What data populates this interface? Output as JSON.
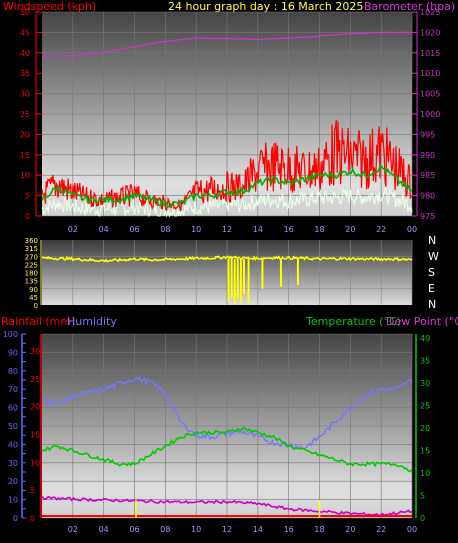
{
  "header": {
    "title": "24 hour graph day : 16 March 2025",
    "left_label": "Windspeed (kph)",
    "right_label": "Barometer (hpa)"
  },
  "colors": {
    "wind": "#ff0000",
    "gust_avg": "#00cc00",
    "gust_white": "#ffffff",
    "barometer": "#cc33cc",
    "direction": "#ffff00",
    "humidity": "#7777ff",
    "temperature": "#00cc00",
    "dewpoint": "#cc00cc",
    "rain": "#ff0000",
    "rain_bar": "#ffff00",
    "axis_red": "#ff0000",
    "axis_blue": "#6666ff",
    "axis_green": "#00cc00"
  },
  "chart_data": [
    {
      "type": "line",
      "id": "wind-baro",
      "xticks": [
        "02",
        "04",
        "06",
        "08",
        "10",
        "12",
        "14",
        "16",
        "18",
        "20",
        "22",
        "00"
      ],
      "y_left": {
        "label": "Windspeed (kph)",
        "ticks": [
          0,
          5,
          10,
          15,
          20,
          25,
          30,
          35,
          40,
          45,
          50
        ],
        "range": [
          0,
          50
        ]
      },
      "y_right": {
        "label": "Barometer (hpa)",
        "ticks": [
          975,
          980,
          985,
          990,
          995,
          1000,
          1005,
          1010,
          1015,
          1020,
          1025
        ],
        "range": [
          975,
          1025
        ]
      },
      "series": [
        {
          "role": "wind-max",
          "hours": [
            0,
            1,
            2,
            3,
            4,
            5,
            6,
            7,
            8,
            9,
            10,
            11,
            12,
            13,
            14,
            15,
            16,
            17,
            18,
            19,
            20,
            21,
            22,
            23,
            24
          ],
          "values": [
            8,
            12,
            9,
            7,
            6,
            7,
            8,
            6,
            5,
            4,
            9,
            10,
            11,
            11,
            17,
            19,
            18,
            17,
            18,
            24,
            22,
            21,
            24,
            18,
            12
          ]
        },
        {
          "role": "wind-avg",
          "hours": [
            0,
            1,
            2,
            3,
            4,
            5,
            6,
            7,
            8,
            9,
            10,
            11,
            12,
            13,
            14,
            15,
            16,
            17,
            18,
            19,
            20,
            21,
            22,
            23,
            24
          ],
          "values": [
            4,
            7,
            5,
            4,
            4,
            4,
            5,
            4,
            3,
            3,
            5,
            5,
            6,
            6,
            8,
            9,
            8,
            9,
            10,
            10,
            11,
            10,
            12,
            9,
            6
          ]
        },
        {
          "role": "barometer",
          "hours": [
            0,
            2,
            4,
            6,
            8,
            10,
            12,
            14,
            16,
            18,
            20,
            22,
            24
          ],
          "values": [
            1014,
            1014.3,
            1015,
            1016.5,
            1017.8,
            1018.6,
            1018.5,
            1018.3,
            1018.6,
            1019.1,
            1019.7,
            1020,
            1020
          ]
        }
      ]
    },
    {
      "type": "scatter",
      "id": "wind-direction",
      "yticks": [
        0,
        45,
        90,
        135,
        180,
        225,
        270,
        315,
        360
      ],
      "compass": [
        "N",
        "W",
        "S",
        "E",
        "N"
      ],
      "series": [
        {
          "role": "direction",
          "hours": [
            0,
            1,
            2,
            3,
            4,
            5,
            6,
            7,
            8,
            9,
            10,
            11,
            12,
            13,
            14,
            15,
            16,
            17,
            18,
            19,
            20,
            21,
            22,
            23,
            24
          ],
          "values": [
            260,
            258,
            255,
            250,
            245,
            248,
            255,
            250,
            252,
            255,
            258,
            260,
            265,
            260,
            258,
            262,
            260,
            258,
            255,
            257,
            256,
            255,
            254,
            255,
            250
          ]
        }
      ]
    },
    {
      "type": "line",
      "id": "temp-hum-rain",
      "labels": {
        "rain": "Rainfall (mm)",
        "humidity": "Humidity",
        "temperature": "Temperature (°C)",
        "dewpoint": "Dew Point (°C)"
      },
      "xticks": [
        "02",
        "04",
        "06",
        "08",
        "10",
        "12",
        "14",
        "16",
        "18",
        "20",
        "22",
        "00"
      ],
      "y_humidity": {
        "ticks": [
          0,
          10,
          20,
          30,
          40,
          50,
          60,
          70,
          80,
          90,
          100
        ],
        "range": [
          0,
          100
        ]
      },
      "y_rain": {
        "ticks": [
          0,
          5,
          10,
          15,
          20,
          25,
          30
        ],
        "range": [
          0,
          30
        ]
      },
      "y_temp": {
        "ticks": [
          0,
          5,
          10,
          15,
          20,
          25,
          30,
          35,
          40
        ],
        "range": [
          0,
          40
        ]
      },
      "series": [
        {
          "role": "humidity",
          "hours": [
            0,
            1,
            2,
            3,
            4,
            5,
            6,
            7,
            8,
            9,
            10,
            11,
            12,
            13,
            14,
            15,
            16,
            17,
            18,
            19,
            20,
            21,
            22,
            23,
            24
          ],
          "values": [
            65,
            62,
            66,
            68,
            70,
            73,
            76,
            74,
            68,
            52,
            45,
            44,
            46,
            47,
            44,
            41,
            40,
            38,
            44,
            52,
            60,
            67,
            70,
            70,
            75
          ]
        },
        {
          "role": "temperature",
          "hours": [
            0,
            1,
            2,
            3,
            4,
            5,
            6,
            7,
            8,
            9,
            10,
            11,
            12,
            13,
            14,
            15,
            16,
            17,
            18,
            19,
            20,
            21,
            22,
            23,
            24
          ],
          "values": [
            15,
            16,
            15,
            14,
            13,
            12,
            12,
            14,
            16,
            18,
            19,
            19,
            19,
            20,
            19,
            18,
            16,
            15,
            14,
            13,
            12,
            12,
            12,
            12,
            10.5
          ]
        },
        {
          "role": "dewpoint",
          "hours": [
            0,
            2,
            4,
            6,
            8,
            10,
            12,
            14,
            16,
            18,
            20,
            22,
            24
          ],
          "values": [
            4.5,
            4.2,
            4,
            3.8,
            3.6,
            3.5,
            3.6,
            3.2,
            2,
            1.5,
            1,
            0.7,
            1.5
          ]
        },
        {
          "role": "rain",
          "hours": [
            0,
            24
          ],
          "values": [
            0,
            0
          ]
        }
      ],
      "rain_markers": [
        6.1,
        18.0
      ]
    }
  ]
}
